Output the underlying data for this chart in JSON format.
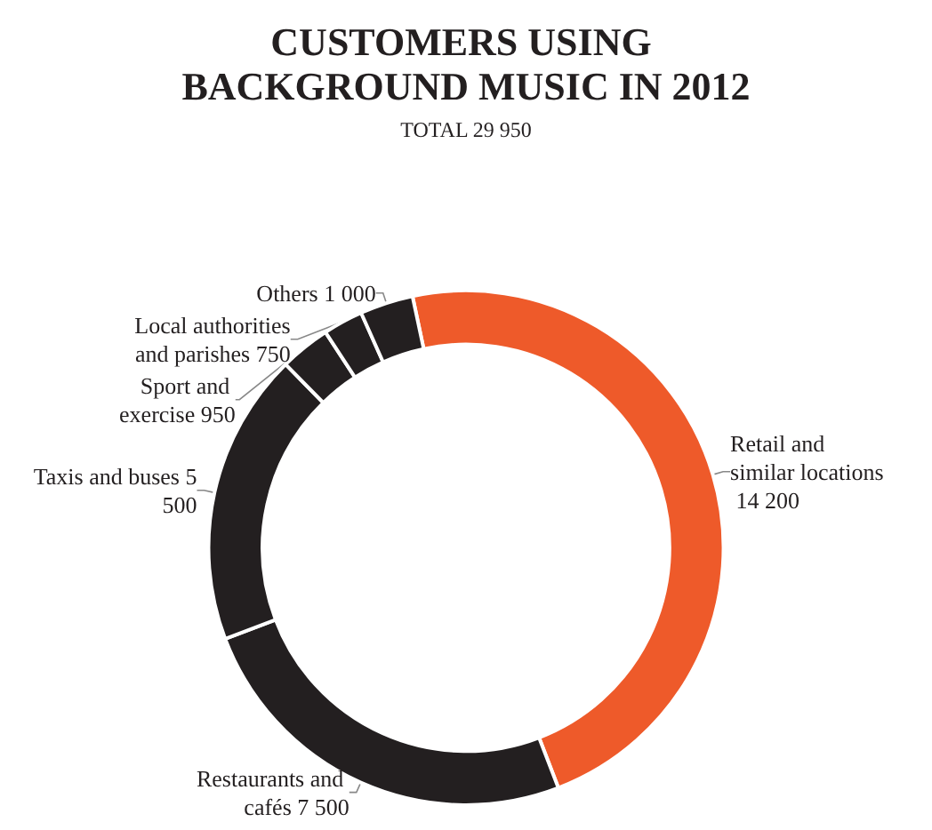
{
  "chart_data": {
    "type": "donut",
    "title": "CUSTOMERS USING BACKGROUND MUSIC IN 2012",
    "subtitle": "TOTAL 29 950",
    "categories": [
      "Retail and similar locations",
      "Restaurants and cafés",
      "Taxis and buses",
      "Sport and exercise",
      "Local authorities and parishes",
      "Others"
    ],
    "values": [
      14200,
      7500,
      5500,
      950,
      750,
      1000
    ],
    "value_labels": [
      "14 200",
      "7 500",
      "5 500",
      "950",
      "750",
      "1 000"
    ],
    "colors": [
      "#ee5a2a",
      "#231f20",
      "#231f20",
      "#231f20",
      "#231f20",
      "#231f20"
    ],
    "legend": false
  }
}
